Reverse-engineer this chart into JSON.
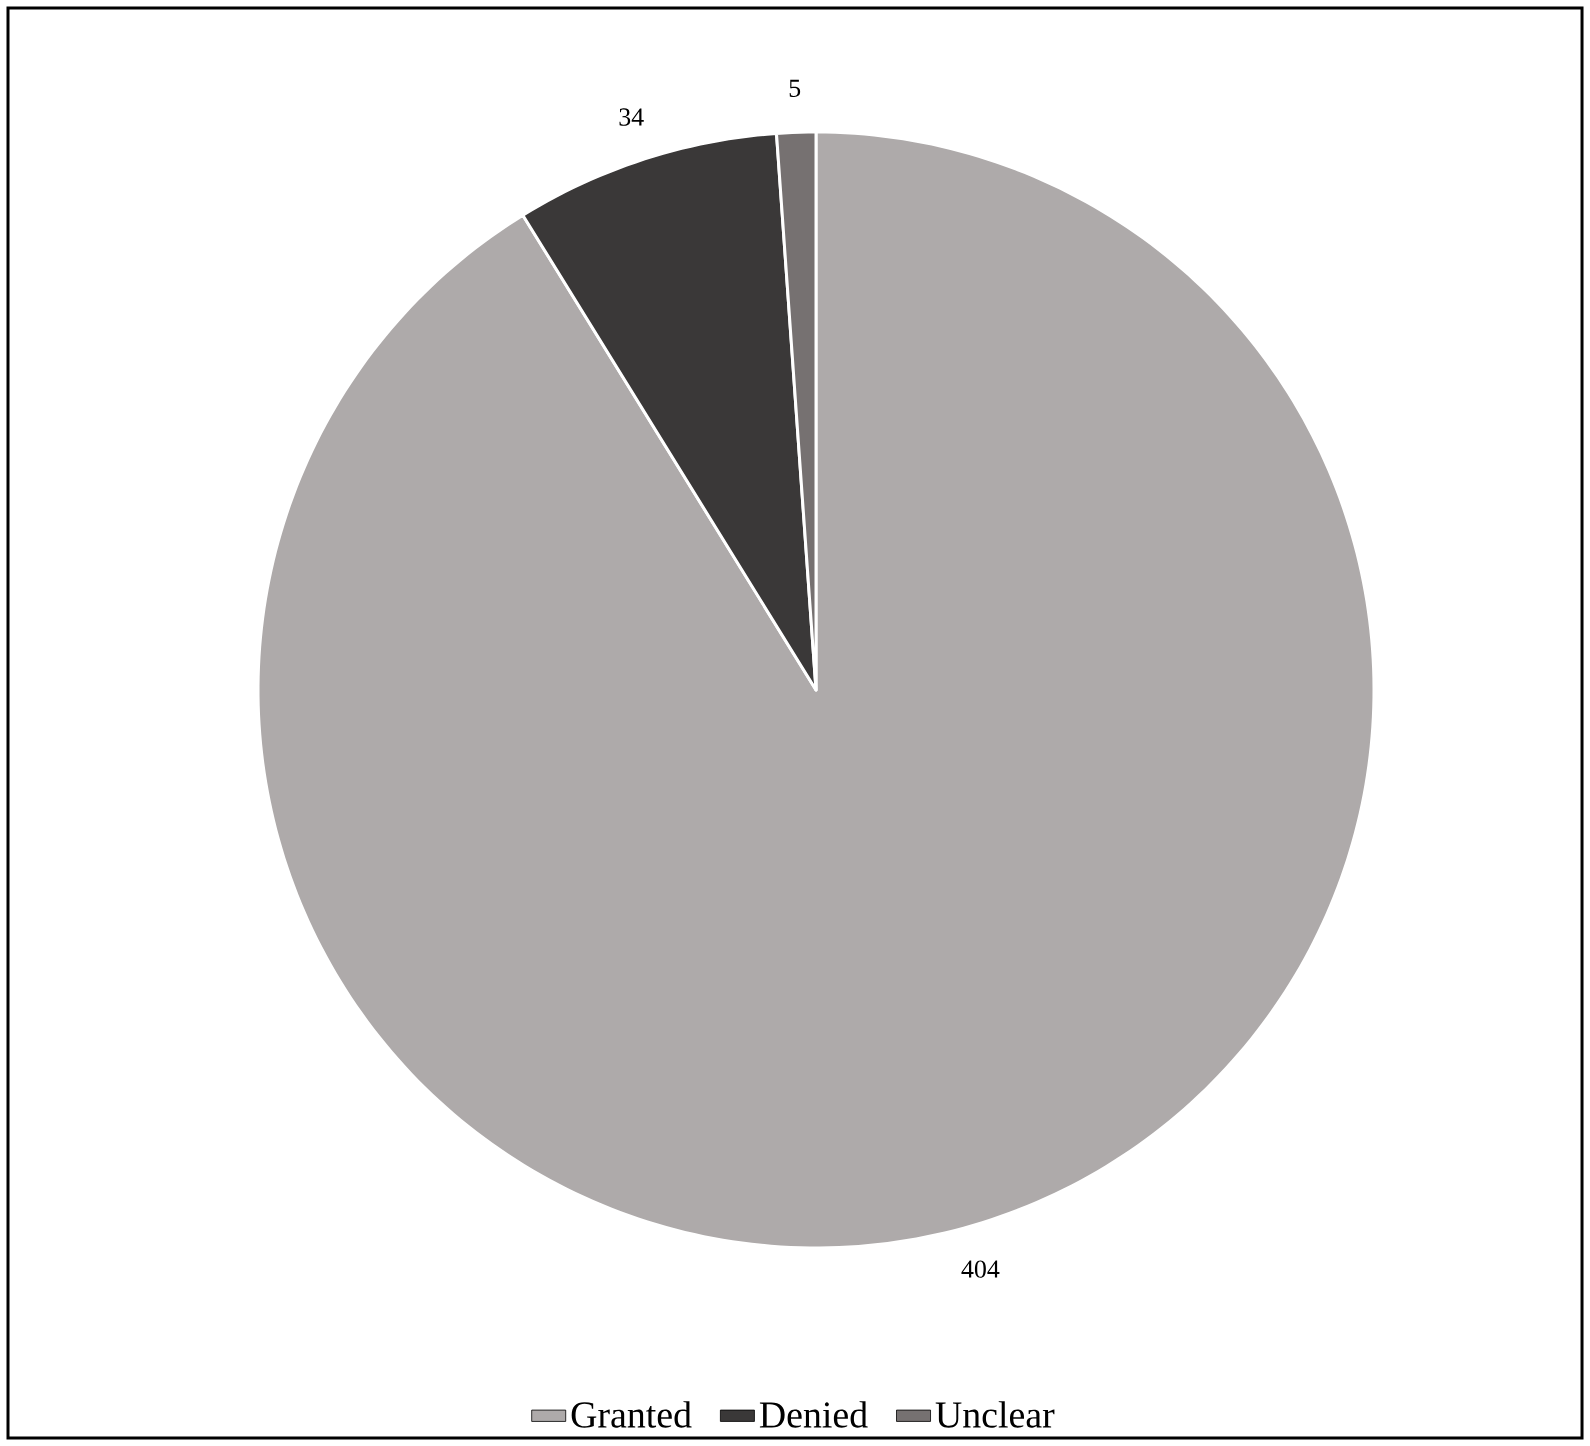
{
  "chart_data": {
    "type": "pie",
    "categories": [
      "Granted",
      "Denied",
      "Unclear"
    ],
    "values": [
      404,
      34,
      5
    ],
    "colors": [
      "#aeaaaa",
      "#3a3838",
      "#767171"
    ],
    "data_labels": true,
    "legend": "bottom"
  }
}
